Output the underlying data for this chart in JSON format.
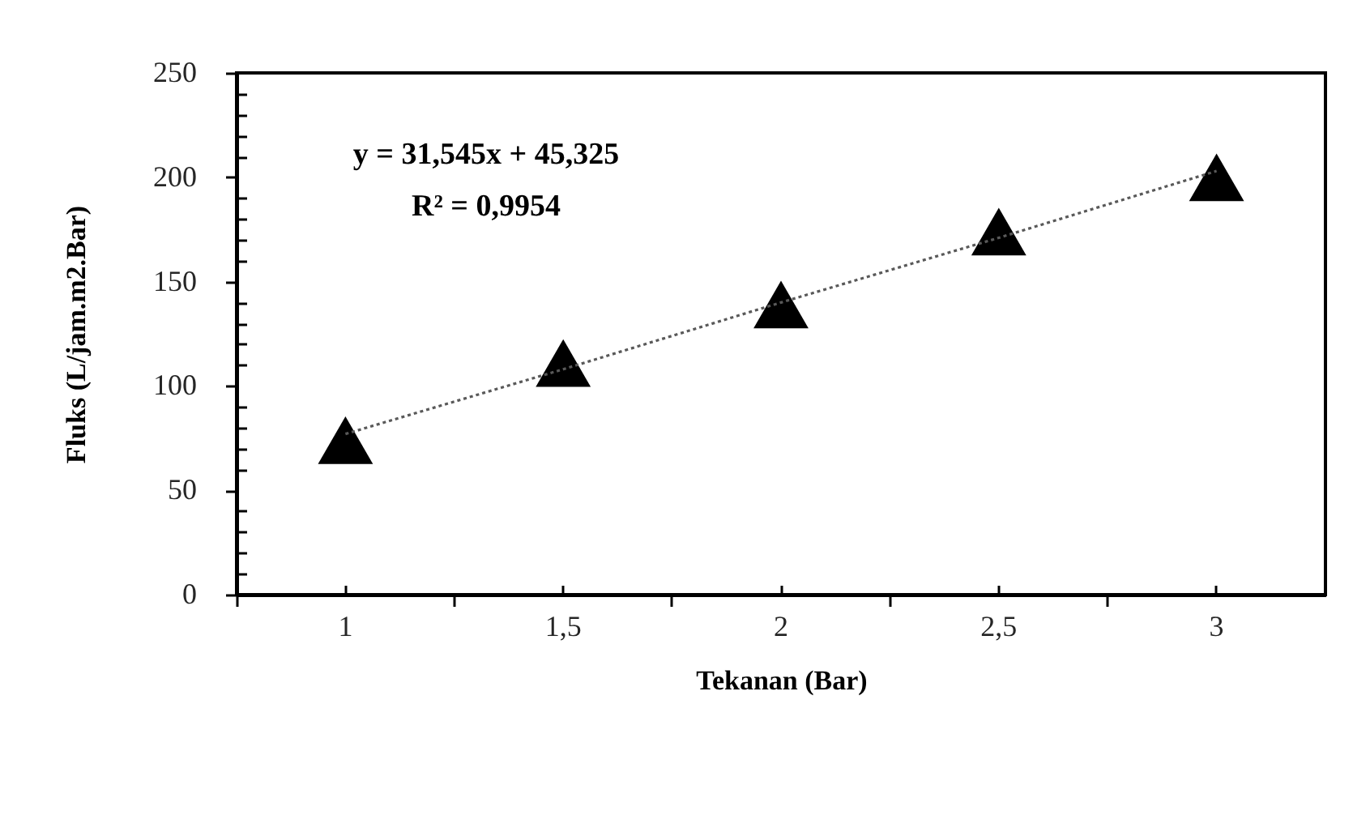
{
  "chart_data": {
    "type": "scatter",
    "xlabel": "Tekanan (Bar)",
    "ylabel": "Fluks (L/jam.m2.Bar)",
    "categories": [
      "1",
      "1,5",
      "2",
      "2,5",
      "3"
    ],
    "series": [
      {
        "color": "#000000",
        "marker": "triangle",
        "values": [
          74,
          111,
          139,
          174,
          200
        ]
      },
      {
        "type": "line",
        "color": "#595959",
        "marker": "none",
        "line_style": "dotted",
        "values": [
          77,
          108,
          140,
          171,
          203
        ]
      }
    ],
    "ylim": [
      0,
      250
    ],
    "yticks": [
      0,
      {
        "value": 10,
        "label": null
      },
      {
        "value": 20,
        "label": null
      },
      {
        "value": 30,
        "label": null
      },
      {
        "value": 40,
        "label": null
      },
      50,
      {
        "value": 60,
        "label": null
      },
      {
        "value": 70,
        "label": null
      },
      {
        "value": 80,
        "label": null
      },
      {
        "value": 90,
        "label": null
      },
      100,
      {
        "value": 110,
        "label": null
      },
      {
        "value": 120,
        "label": null
      },
      {
        "value": 130,
        "label": null
      },
      {
        "value": 140,
        "label": null
      },
      150,
      {
        "value": 160,
        "label": null
      },
      {
        "value": 170,
        "label": null
      },
      {
        "value": 180,
        "label": null
      },
      {
        "value": 190,
        "label": null
      },
      200,
      {
        "value": 210,
        "label": null
      },
      {
        "value": 220,
        "label": null
      },
      {
        "value": 230,
        "label": null
      },
      {
        "value": 240,
        "label": null
      },
      250
    ],
    "grid": false,
    "annotations": [
      "y = 31,545x + 45,325",
      "R² = 0,9954"
    ]
  }
}
